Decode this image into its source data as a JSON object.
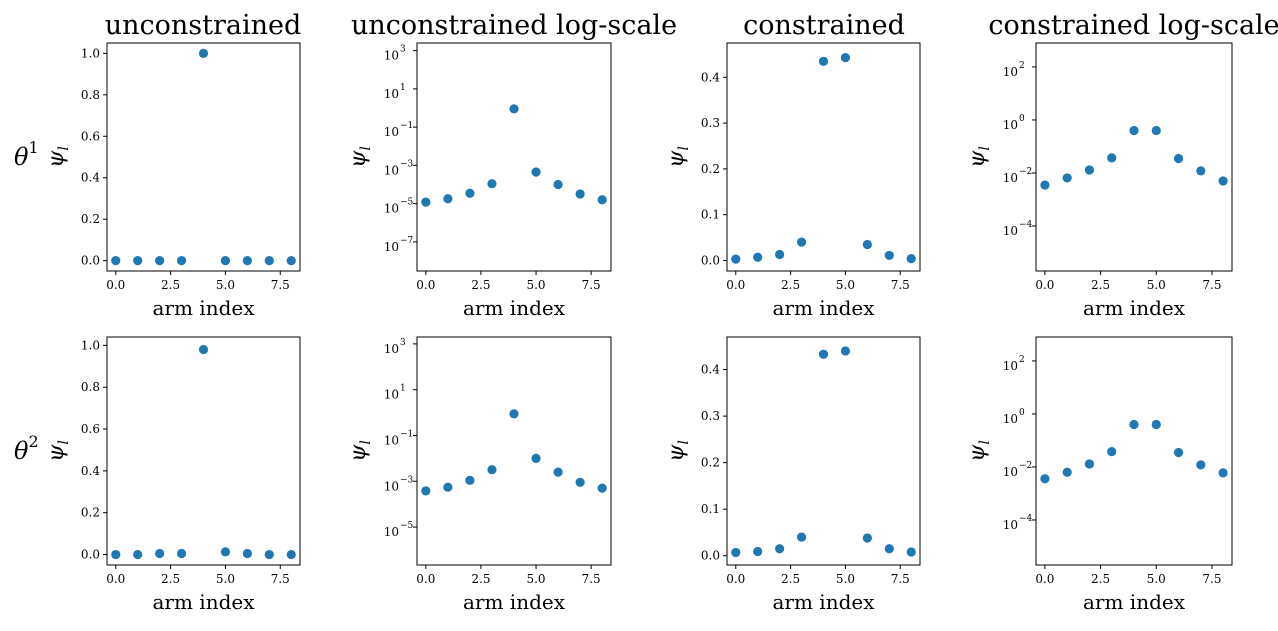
{
  "figure": {
    "column_titles": [
      "unconstrained",
      "unconstrained log-scale",
      "constrained",
      "constrained log-scale"
    ],
    "row_labels": [
      {
        "symbol": "θ",
        "sup": "1"
      },
      {
        "symbol": "θ",
        "sup": "2"
      }
    ],
    "ylabel": {
      "symbol": "ψ",
      "sub": "l"
    },
    "xlabel": "arm index",
    "marker_color": "#1f77b4"
  },
  "chart_data": [
    {
      "type": "scatter",
      "title": "unconstrained",
      "row": 1,
      "col": 1,
      "xlabel": "arm index",
      "ylabel": "ψ_l",
      "x": [
        0,
        1,
        2,
        3,
        4,
        5,
        6,
        7,
        8
      ],
      "y": [
        0.0,
        0.0,
        0.0,
        0.0,
        1.0,
        0.0,
        0.0,
        0.0,
        0.0
      ],
      "xlim": [
        -0.4,
        8.4
      ],
      "ylim": [
        -0.05,
        1.05
      ],
      "yscale": "linear",
      "xticks": [
        0,
        2.5,
        5,
        7.5
      ],
      "xtick_labels": [
        "0.0",
        "2.5",
        "5.0",
        "7.5"
      ],
      "yticks": [
        0,
        0.2,
        0.4,
        0.6,
        0.8,
        1.0
      ],
      "ytick_labels": [
        "0.0",
        "0.2",
        "0.4",
        "0.6",
        "0.8",
        "1.0"
      ]
    },
    {
      "type": "scatter",
      "title": "unconstrained log-scale",
      "row": 1,
      "col": 2,
      "xlabel": "arm index",
      "ylabel": "ψ_l",
      "x": [
        0,
        1,
        2,
        3,
        4,
        5,
        6,
        7,
        8
      ],
      "y": [
        1.2e-05,
        1.8e-05,
        3.5e-05,
        0.00011,
        0.9,
        0.00045,
        0.0001,
        3.2e-05,
        1.6e-05
      ],
      "xlim": [
        -0.4,
        8.4
      ],
      "ylim": [
        3e-09,
        2500
      ],
      "yscale": "log",
      "xticks": [
        0,
        2.5,
        5,
        7.5
      ],
      "xtick_labels": [
        "0.0",
        "2.5",
        "5.0",
        "7.5"
      ],
      "yticks": [
        1e-07,
        1e-05,
        0.001,
        0.1,
        10.0,
        1000.0
      ],
      "ytick_labels": [
        "10",
        "10",
        "10",
        "10",
        "10",
        "10"
      ],
      "ytick_exponents": [
        "−7",
        "−5",
        "−3",
        "−1",
        "1",
        "3"
      ]
    },
    {
      "type": "scatter",
      "title": "constrained",
      "row": 1,
      "col": 3,
      "xlabel": "arm index",
      "ylabel": "ψ_l",
      "x": [
        0,
        1,
        2,
        3,
        4,
        5,
        6,
        7,
        8
      ],
      "y": [
        0.003,
        0.007,
        0.013,
        0.04,
        0.435,
        0.443,
        0.035,
        0.011,
        0.004
      ],
      "xlim": [
        -0.4,
        8.4
      ],
      "ylim": [
        -0.023,
        0.475
      ],
      "yscale": "linear",
      "xticks": [
        0,
        2.5,
        5,
        7.5
      ],
      "xtick_labels": [
        "0.0",
        "2.5",
        "5.0",
        "7.5"
      ],
      "yticks": [
        0,
        0.1,
        0.2,
        0.3,
        0.4
      ],
      "ytick_labels": [
        "0.0",
        "0.1",
        "0.2",
        "0.3",
        "0.4"
      ]
    },
    {
      "type": "scatter",
      "title": "constrained log-scale",
      "row": 1,
      "col": 4,
      "xlabel": "arm index",
      "ylabel": "ψ_l",
      "x": [
        0,
        1,
        2,
        3,
        4,
        5,
        6,
        7,
        8
      ],
      "y": [
        0.0035,
        0.0065,
        0.013,
        0.037,
        0.4,
        0.4,
        0.035,
        0.012,
        0.005
      ],
      "xlim": [
        -0.4,
        8.4
      ],
      "ylim": [
        2e-06,
        800
      ],
      "yscale": "log",
      "xticks": [
        0,
        2.5,
        5,
        7.5
      ],
      "xtick_labels": [
        "0.0",
        "2.5",
        "5.0",
        "7.5"
      ],
      "yticks": [
        0.0001,
        0.01,
        1.0,
        100.0
      ],
      "ytick_labels": [
        "10",
        "10",
        "10",
        "10"
      ],
      "ytick_exponents": [
        "−4",
        "−2",
        "0",
        "2"
      ]
    },
    {
      "type": "scatter",
      "title": "",
      "row": 2,
      "col": 1,
      "xlabel": "arm index",
      "ylabel": "ψ_l",
      "x": [
        0,
        1,
        2,
        3,
        4,
        5,
        6,
        7,
        8
      ],
      "y": [
        0.0,
        0.0,
        0.005,
        0.005,
        0.98,
        0.013,
        0.005,
        0.0,
        0.0
      ],
      "xlim": [
        -0.4,
        8.4
      ],
      "ylim": [
        -0.05,
        1.04
      ],
      "yscale": "linear",
      "xticks": [
        0,
        2.5,
        5,
        7.5
      ],
      "xtick_labels": [
        "0.0",
        "2.5",
        "5.0",
        "7.5"
      ],
      "yticks": [
        0,
        0.2,
        0.4,
        0.6,
        0.8,
        1.0
      ],
      "ytick_labels": [
        "0.0",
        "0.2",
        "0.4",
        "0.6",
        "0.8",
        "1.0"
      ]
    },
    {
      "type": "scatter",
      "title": "",
      "row": 2,
      "col": 2,
      "xlabel": "arm index",
      "ylabel": "ψ_l",
      "x": [
        0,
        1,
        2,
        3,
        4,
        5,
        6,
        7,
        8
      ],
      "y": [
        0.00038,
        0.00055,
        0.0011,
        0.0032,
        0.88,
        0.01,
        0.0025,
        0.0009,
        0.0005
      ],
      "xlim": [
        -0.4,
        8.4
      ],
      "ylim": [
        2.2e-07,
        2000
      ],
      "yscale": "log",
      "xticks": [
        0,
        2.5,
        5,
        7.5
      ],
      "xtick_labels": [
        "0.0",
        "2.5",
        "5.0",
        "7.5"
      ],
      "yticks": [
        1e-05,
        0.001,
        0.1,
        10.0,
        1000.0
      ],
      "ytick_labels": [
        "10",
        "10",
        "10",
        "10",
        "10"
      ],
      "ytick_exponents": [
        "−5",
        "−3",
        "−1",
        "1",
        "3"
      ]
    },
    {
      "type": "scatter",
      "title": "",
      "row": 2,
      "col": 3,
      "xlabel": "arm index",
      "ylabel": "ψ_l",
      "x": [
        0,
        1,
        2,
        3,
        4,
        5,
        6,
        7,
        8
      ],
      "y": [
        0.007,
        0.009,
        0.015,
        0.04,
        0.433,
        0.44,
        0.038,
        0.015,
        0.008
      ],
      "xlim": [
        -0.4,
        8.4
      ],
      "ylim": [
        -0.02,
        0.47
      ],
      "yscale": "linear",
      "xticks": [
        0,
        2.5,
        5,
        7.5
      ],
      "xtick_labels": [
        "0.0",
        "2.5",
        "5.0",
        "7.5"
      ],
      "yticks": [
        0,
        0.1,
        0.2,
        0.3,
        0.4
      ],
      "ytick_labels": [
        "0.0",
        "0.1",
        "0.2",
        "0.3",
        "0.4"
      ]
    },
    {
      "type": "scatter",
      "title": "",
      "row": 2,
      "col": 4,
      "xlabel": "arm index",
      "ylabel": "ψ_l",
      "x": [
        0,
        1,
        2,
        3,
        4,
        5,
        6,
        7,
        8
      ],
      "y": [
        0.0036,
        0.0063,
        0.013,
        0.038,
        0.4,
        0.4,
        0.035,
        0.012,
        0.006
      ],
      "xlim": [
        -0.4,
        8.4
      ],
      "ylim": [
        2e-06,
        800
      ],
      "yscale": "log",
      "xticks": [
        0,
        2.5,
        5,
        7.5
      ],
      "xtick_labels": [
        "0.0",
        "2.5",
        "5.0",
        "7.5"
      ],
      "yticks": [
        0.0001,
        0.01,
        1.0,
        100.0
      ],
      "ytick_labels": [
        "10",
        "10",
        "10",
        "10"
      ],
      "ytick_exponents": [
        "−4",
        "−2",
        "0",
        "2"
      ]
    }
  ]
}
